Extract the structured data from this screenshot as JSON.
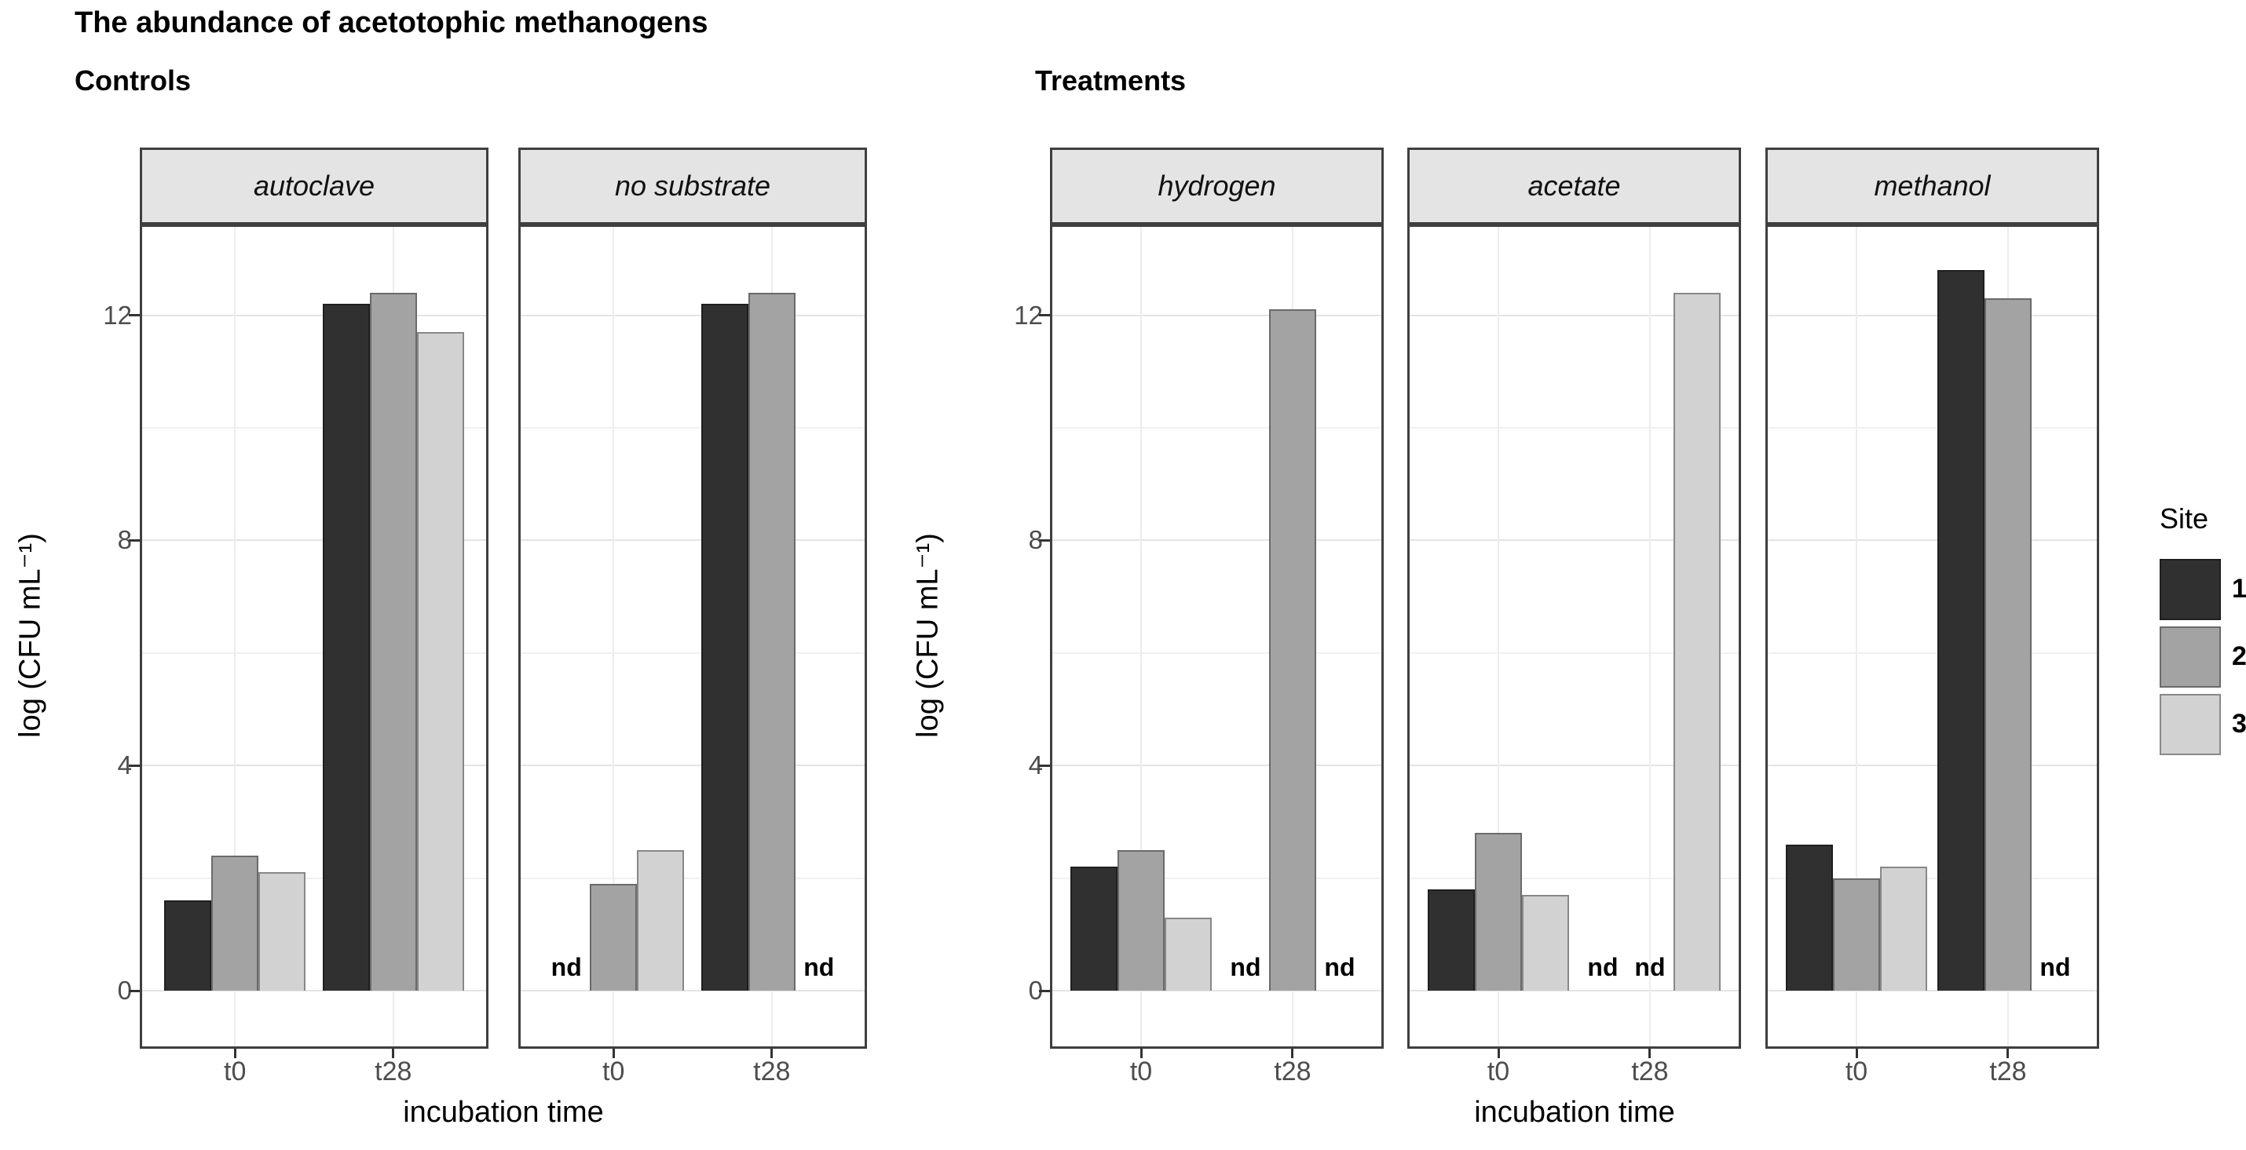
{
  "figure": {
    "title": "The abundance of acetotophic methanogens",
    "background": "#ffffff"
  },
  "axes": {
    "y_title": "log (CFU mL⁻¹)",
    "x_title": "incubation time",
    "y_ticks": [
      "0",
      "4",
      "8",
      "12"
    ],
    "y_minor_ticks": [
      2,
      6,
      10
    ],
    "x_categories": [
      "t0",
      "t28"
    ]
  },
  "legend": {
    "title": "Site",
    "entries": [
      {
        "label": "1",
        "color": "#303030"
      },
      {
        "label": "2",
        "color": "#a3a3a3"
      },
      {
        "label": "3",
        "color": "#d2d2d2"
      }
    ]
  },
  "nd_label": "nd",
  "colors": {
    "site1": "#303030",
    "site2": "#a3a3a3",
    "site3": "#d2d2d2",
    "strip_bg": "#e4e4e4",
    "panel_border": "#3f3f3f",
    "tick_text": "#4d4d4d"
  },
  "chart_data": {
    "type": "bar",
    "title": "The abundance of acetotophic methanogens",
    "xlabel": "incubation time",
    "ylabel": "log (CFU mL⁻¹)",
    "ylim": [
      0,
      13.6
    ],
    "y_tick_values": [
      0,
      4,
      8,
      12
    ],
    "y_minor_tick_values": [
      2,
      6,
      10
    ],
    "grid": true,
    "legend_title": "Site",
    "legend_position": "right",
    "categories": [
      "t0",
      "t28"
    ],
    "null_means": "nd (not detected)",
    "sections": [
      {
        "label": "Controls",
        "facets": [
          {
            "name": "autoclave",
            "series": [
              {
                "name": "1",
                "values": [
                  1.6,
                  12.2
                ]
              },
              {
                "name": "2",
                "values": [
                  2.4,
                  12.4
                ]
              },
              {
                "name": "3",
                "values": [
                  2.1,
                  11.7
                ]
              }
            ]
          },
          {
            "name": "no substrate",
            "series": [
              {
                "name": "1",
                "values": [
                  null,
                  12.2
                ]
              },
              {
                "name": "2",
                "values": [
                  1.9,
                  12.4
                ]
              },
              {
                "name": "3",
                "values": [
                  2.5,
                  null
                ]
              }
            ]
          }
        ]
      },
      {
        "label": "Treatments",
        "facets": [
          {
            "name": "hydrogen",
            "series": [
              {
                "name": "1",
                "values": [
                  2.2,
                  null
                ]
              },
              {
                "name": "2",
                "values": [
                  2.5,
                  12.1
                ]
              },
              {
                "name": "3",
                "values": [
                  1.3,
                  null
                ]
              }
            ]
          },
          {
            "name": "acetate",
            "series": [
              {
                "name": "1",
                "values": [
                  1.8,
                  null
                ]
              },
              {
                "name": "2",
                "values": [
                  2.8,
                  null
                ]
              },
              {
                "name": "3",
                "values": [
                  1.7,
                  12.4
                ]
              }
            ]
          },
          {
            "name": "methanol",
            "series": [
              {
                "name": "1",
                "values": [
                  2.6,
                  12.8
                ]
              },
              {
                "name": "2",
                "values": [
                  2.0,
                  12.3
                ]
              },
              {
                "name": "3",
                "values": [
                  2.2,
                  null
                ]
              }
            ]
          }
        ]
      }
    ]
  }
}
